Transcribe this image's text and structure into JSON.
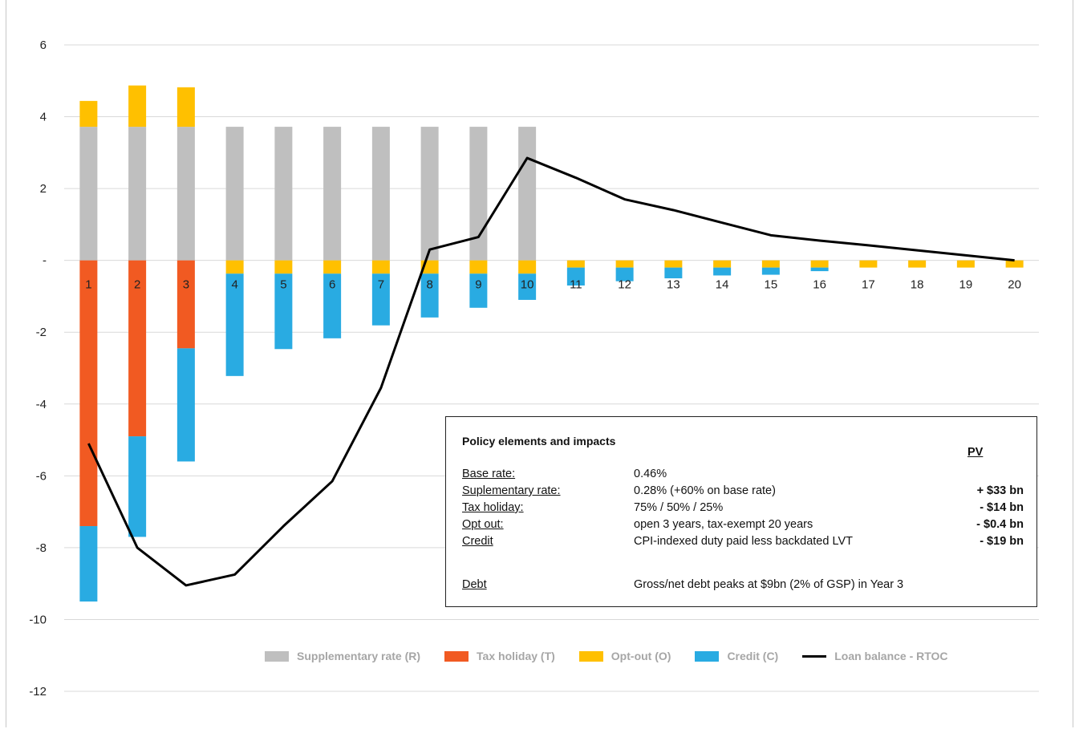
{
  "colors": {
    "supplementary": "#bfbfbf",
    "tax_holiday": "#f15a22",
    "opt_out": "#ffc000",
    "credit": "#29abe2",
    "loan": "#000000",
    "grid": "#d9d9d9"
  },
  "chart_data": {
    "type": "bar",
    "stacked": true,
    "categories": [
      "1",
      "2",
      "3",
      "4",
      "5",
      "6",
      "7",
      "8",
      "9",
      "10",
      "11",
      "12",
      "13",
      "14",
      "15",
      "16",
      "17",
      "18",
      "19",
      "20"
    ],
    "ylim": [
      -12,
      6
    ],
    "yticks": [
      {
        "v": 6,
        "label": "6"
      },
      {
        "v": 4,
        "label": "4"
      },
      {
        "v": 2,
        "label": "2"
      },
      {
        "v": 0,
        "label": "-"
      },
      {
        "v": -2,
        "label": "-2"
      },
      {
        "v": -4,
        "label": "-4"
      },
      {
        "v": -6,
        "label": "-6"
      },
      {
        "v": -8,
        "label": "-8"
      },
      {
        "v": -10,
        "label": "-10"
      },
      {
        "v": -12,
        "label": "-12"
      }
    ],
    "grid": true,
    "legend_position": "bottom-right",
    "series": [
      {
        "name": "Supplementary rate (R)",
        "kind": "bar",
        "color": "#bfbfbf",
        "values": [
          3.72,
          3.72,
          3.72,
          3.72,
          3.72,
          3.72,
          3.72,
          3.72,
          3.72,
          3.72,
          0,
          0,
          0,
          0,
          0,
          0,
          0,
          0,
          0,
          0
        ]
      },
      {
        "name": "Tax holiday (T)",
        "kind": "bar",
        "color": "#f15a22",
        "values": [
          -7.4,
          -4.9,
          -2.45,
          0,
          0,
          0,
          0,
          0,
          0,
          0,
          0,
          0,
          0,
          0,
          0,
          0,
          0,
          0,
          0,
          0
        ]
      },
      {
        "name": "Opt-out (O)",
        "kind": "bar",
        "color": "#ffc000",
        "values": [
          0.72,
          1.15,
          1.1,
          -0.37,
          -0.37,
          -0.37,
          -0.37,
          -0.37,
          -0.37,
          -0.37,
          -0.2,
          -0.2,
          -0.2,
          -0.2,
          -0.2,
          -0.2,
          -0.2,
          -0.2,
          -0.2,
          -0.2
        ]
      },
      {
        "name": "Credit (C)",
        "kind": "bar",
        "color": "#29abe2",
        "values": [
          -2.1,
          -2.8,
          -3.15,
          -2.85,
          -2.1,
          -1.8,
          -1.44,
          -1.22,
          -0.95,
          -0.73,
          -0.5,
          -0.38,
          -0.3,
          -0.22,
          -0.2,
          -0.1,
          0,
          0,
          0,
          0
        ]
      },
      {
        "name": "Loan balance - RTOC",
        "kind": "line",
        "color": "#000000",
        "values": [
          -5.1,
          -8.0,
          -9.05,
          -8.75,
          -7.4,
          -6.15,
          -3.55,
          0.3,
          0.65,
          2.85,
          2.3,
          1.7,
          1.4,
          1.05,
          0.7,
          0.55,
          0.42,
          0.28,
          0.14,
          0.0
        ]
      }
    ]
  },
  "legend": {
    "items": [
      {
        "label": "Supplementary rate (R)",
        "color": "#bfbfbf",
        "kind": "bar"
      },
      {
        "label": "Tax holiday (T)",
        "color": "#f15a22",
        "kind": "bar"
      },
      {
        "label": "Opt-out (O)",
        "color": "#ffc000",
        "kind": "bar"
      },
      {
        "label": "Credit (C)",
        "color": "#29abe2",
        "kind": "bar"
      },
      {
        "label": "Loan balance - RTOC",
        "color": "#000000",
        "kind": "line"
      }
    ]
  },
  "info_box": {
    "title": "Policy elements and impacts",
    "pv_header": "PV",
    "rows": [
      {
        "key": "Base rate:",
        "value": "0.46%",
        "pv": ""
      },
      {
        "key": "Suplementary rate:",
        "value": "0.28% (+60% on base rate)",
        "pv": "+ $33 bn"
      },
      {
        "key": "Tax holiday:",
        "value": "75% / 50% / 25%",
        "pv": "- $14 bn"
      },
      {
        "key": "Opt out:",
        "value": "open 3 years, tax-exempt 20 years",
        "pv": "- $0.4 bn"
      },
      {
        "key": "Credit",
        "value": "CPI-indexed duty paid less backdated LVT",
        "pv": "- $19 bn"
      },
      {
        "key": "Debt",
        "value": "Gross/net debt peaks at $9bn (2% of GSP) in Year 3",
        "pv": ""
      }
    ]
  }
}
